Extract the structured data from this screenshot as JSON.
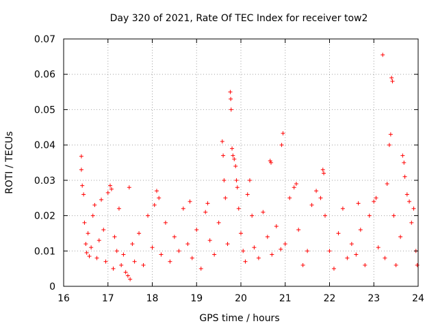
{
  "chart_data": {
    "type": "scatter",
    "title": "Day 320 of 2021, Rate Of TEC Index for receiver tow2",
    "xlabel": "GPS time / hours",
    "ylabel": "ROTI / TECUs",
    "xlim": [
      16,
      24
    ],
    "ylim": [
      0,
      0.07
    ],
    "x_ticks": [
      16,
      17,
      18,
      19,
      20,
      21,
      22,
      23,
      24
    ],
    "x_tick_labels": [
      "16",
      "17",
      "18",
      "19",
      "20",
      "21",
      "22",
      "23",
      "24"
    ],
    "y_ticks": [
      0,
      0.01,
      0.02,
      0.03,
      0.04,
      0.05,
      0.06,
      0.07
    ],
    "y_tick_labels": [
      "0",
      "0.01",
      "0.02",
      "0.03",
      "0.04",
      "0.05",
      "0.06",
      "0.07"
    ],
    "grid": true,
    "marker": "+",
    "color": "#ff0000",
    "series": [
      {
        "name": "ROTI",
        "points": [
          [
            16.4,
            0.0368
          ],
          [
            16.4,
            0.033
          ],
          [
            16.42,
            0.0285
          ],
          [
            16.45,
            0.026
          ],
          [
            16.47,
            0.018
          ],
          [
            16.5,
            0.012
          ],
          [
            16.52,
            0.0095
          ],
          [
            16.55,
            0.015
          ],
          [
            16.58,
            0.0085
          ],
          [
            16.62,
            0.011
          ],
          [
            16.66,
            0.02
          ],
          [
            16.7,
            0.023
          ],
          [
            16.75,
            0.008
          ],
          [
            16.8,
            0.013
          ],
          [
            16.85,
            0.0245
          ],
          [
            16.9,
            0.016
          ],
          [
            16.95,
            0.007
          ],
          [
            17.0,
            0.0265
          ],
          [
            17.05,
            0.0285
          ],
          [
            17.08,
            0.0275
          ],
          [
            17.12,
            0.005
          ],
          [
            17.15,
            0.014
          ],
          [
            17.2,
            0.01
          ],
          [
            17.25,
            0.022
          ],
          [
            17.3,
            0.006
          ],
          [
            17.35,
            0.009
          ],
          [
            17.4,
            0.004
          ],
          [
            17.45,
            0.003
          ],
          [
            17.48,
            0.028
          ],
          [
            17.5,
            0.002
          ],
          [
            17.55,
            0.012
          ],
          [
            17.6,
            0.007
          ],
          [
            17.7,
            0.015
          ],
          [
            17.8,
            0.006
          ],
          [
            17.9,
            0.02
          ],
          [
            18.0,
            0.011
          ],
          [
            18.05,
            0.023
          ],
          [
            18.1,
            0.027
          ],
          [
            18.15,
            0.025
          ],
          [
            18.2,
            0.009
          ],
          [
            18.3,
            0.018
          ],
          [
            18.4,
            0.007
          ],
          [
            18.5,
            0.014
          ],
          [
            18.6,
            0.01
          ],
          [
            18.7,
            0.022
          ],
          [
            18.8,
            0.012
          ],
          [
            18.85,
            0.024
          ],
          [
            18.9,
            0.008
          ],
          [
            19.0,
            0.016
          ],
          [
            19.1,
            0.005
          ],
          [
            19.2,
            0.021
          ],
          [
            19.25,
            0.0235
          ],
          [
            19.3,
            0.013
          ],
          [
            19.4,
            0.009
          ],
          [
            19.5,
            0.018
          ],
          [
            19.58,
            0.041
          ],
          [
            19.6,
            0.037
          ],
          [
            19.62,
            0.03
          ],
          [
            19.65,
            0.025
          ],
          [
            19.7,
            0.012
          ],
          [
            19.76,
            0.055
          ],
          [
            19.77,
            0.053
          ],
          [
            19.78,
            0.05
          ],
          [
            19.8,
            0.039
          ],
          [
            19.82,
            0.037
          ],
          [
            19.85,
            0.036
          ],
          [
            19.88,
            0.034
          ],
          [
            19.9,
            0.03
          ],
          [
            19.92,
            0.028
          ],
          [
            19.95,
            0.022
          ],
          [
            20.0,
            0.015
          ],
          [
            20.05,
            0.01
          ],
          [
            20.1,
            0.007
          ],
          [
            20.15,
            0.026
          ],
          [
            20.2,
            0.03
          ],
          [
            20.25,
            0.02
          ],
          [
            20.3,
            0.011
          ],
          [
            20.4,
            0.008
          ],
          [
            20.5,
            0.021
          ],
          [
            20.6,
            0.014
          ],
          [
            20.66,
            0.0355
          ],
          [
            20.68,
            0.035
          ],
          [
            20.7,
            0.009
          ],
          [
            20.8,
            0.017
          ],
          [
            20.9,
            0.0105
          ],
          [
            20.92,
            0.04
          ],
          [
            20.95,
            0.0433
          ],
          [
            21.0,
            0.012
          ],
          [
            21.1,
            0.025
          ],
          [
            21.2,
            0.028
          ],
          [
            21.25,
            0.029
          ],
          [
            21.3,
            0.016
          ],
          [
            21.4,
            0.006
          ],
          [
            21.5,
            0.01
          ],
          [
            21.6,
            0.023
          ],
          [
            21.7,
            0.027
          ],
          [
            21.8,
            0.025
          ],
          [
            21.85,
            0.033
          ],
          [
            21.87,
            0.032
          ],
          [
            21.9,
            0.02
          ],
          [
            22.0,
            0.01
          ],
          [
            22.1,
            0.005
          ],
          [
            22.2,
            0.015
          ],
          [
            22.3,
            0.022
          ],
          [
            22.4,
            0.008
          ],
          [
            22.5,
            0.012
          ],
          [
            22.6,
            0.009
          ],
          [
            22.65,
            0.0235
          ],
          [
            22.7,
            0.016
          ],
          [
            22.8,
            0.006
          ],
          [
            22.9,
            0.02
          ],
          [
            23.0,
            0.024
          ],
          [
            23.05,
            0.025
          ],
          [
            23.1,
            0.011
          ],
          [
            23.2,
            0.0655
          ],
          [
            23.25,
            0.008
          ],
          [
            23.3,
            0.029
          ],
          [
            23.35,
            0.04
          ],
          [
            23.38,
            0.043
          ],
          [
            23.4,
            0.059
          ],
          [
            23.42,
            0.058
          ],
          [
            23.45,
            0.02
          ],
          [
            23.5,
            0.006
          ],
          [
            23.6,
            0.014
          ],
          [
            23.65,
            0.037
          ],
          [
            23.68,
            0.035
          ],
          [
            23.7,
            0.031
          ],
          [
            23.75,
            0.026
          ],
          [
            23.8,
            0.024
          ],
          [
            23.85,
            0.018
          ],
          [
            23.9,
            0.022
          ],
          [
            23.95,
            0.01
          ],
          [
            23.98,
            0.006
          ]
        ]
      }
    ]
  }
}
